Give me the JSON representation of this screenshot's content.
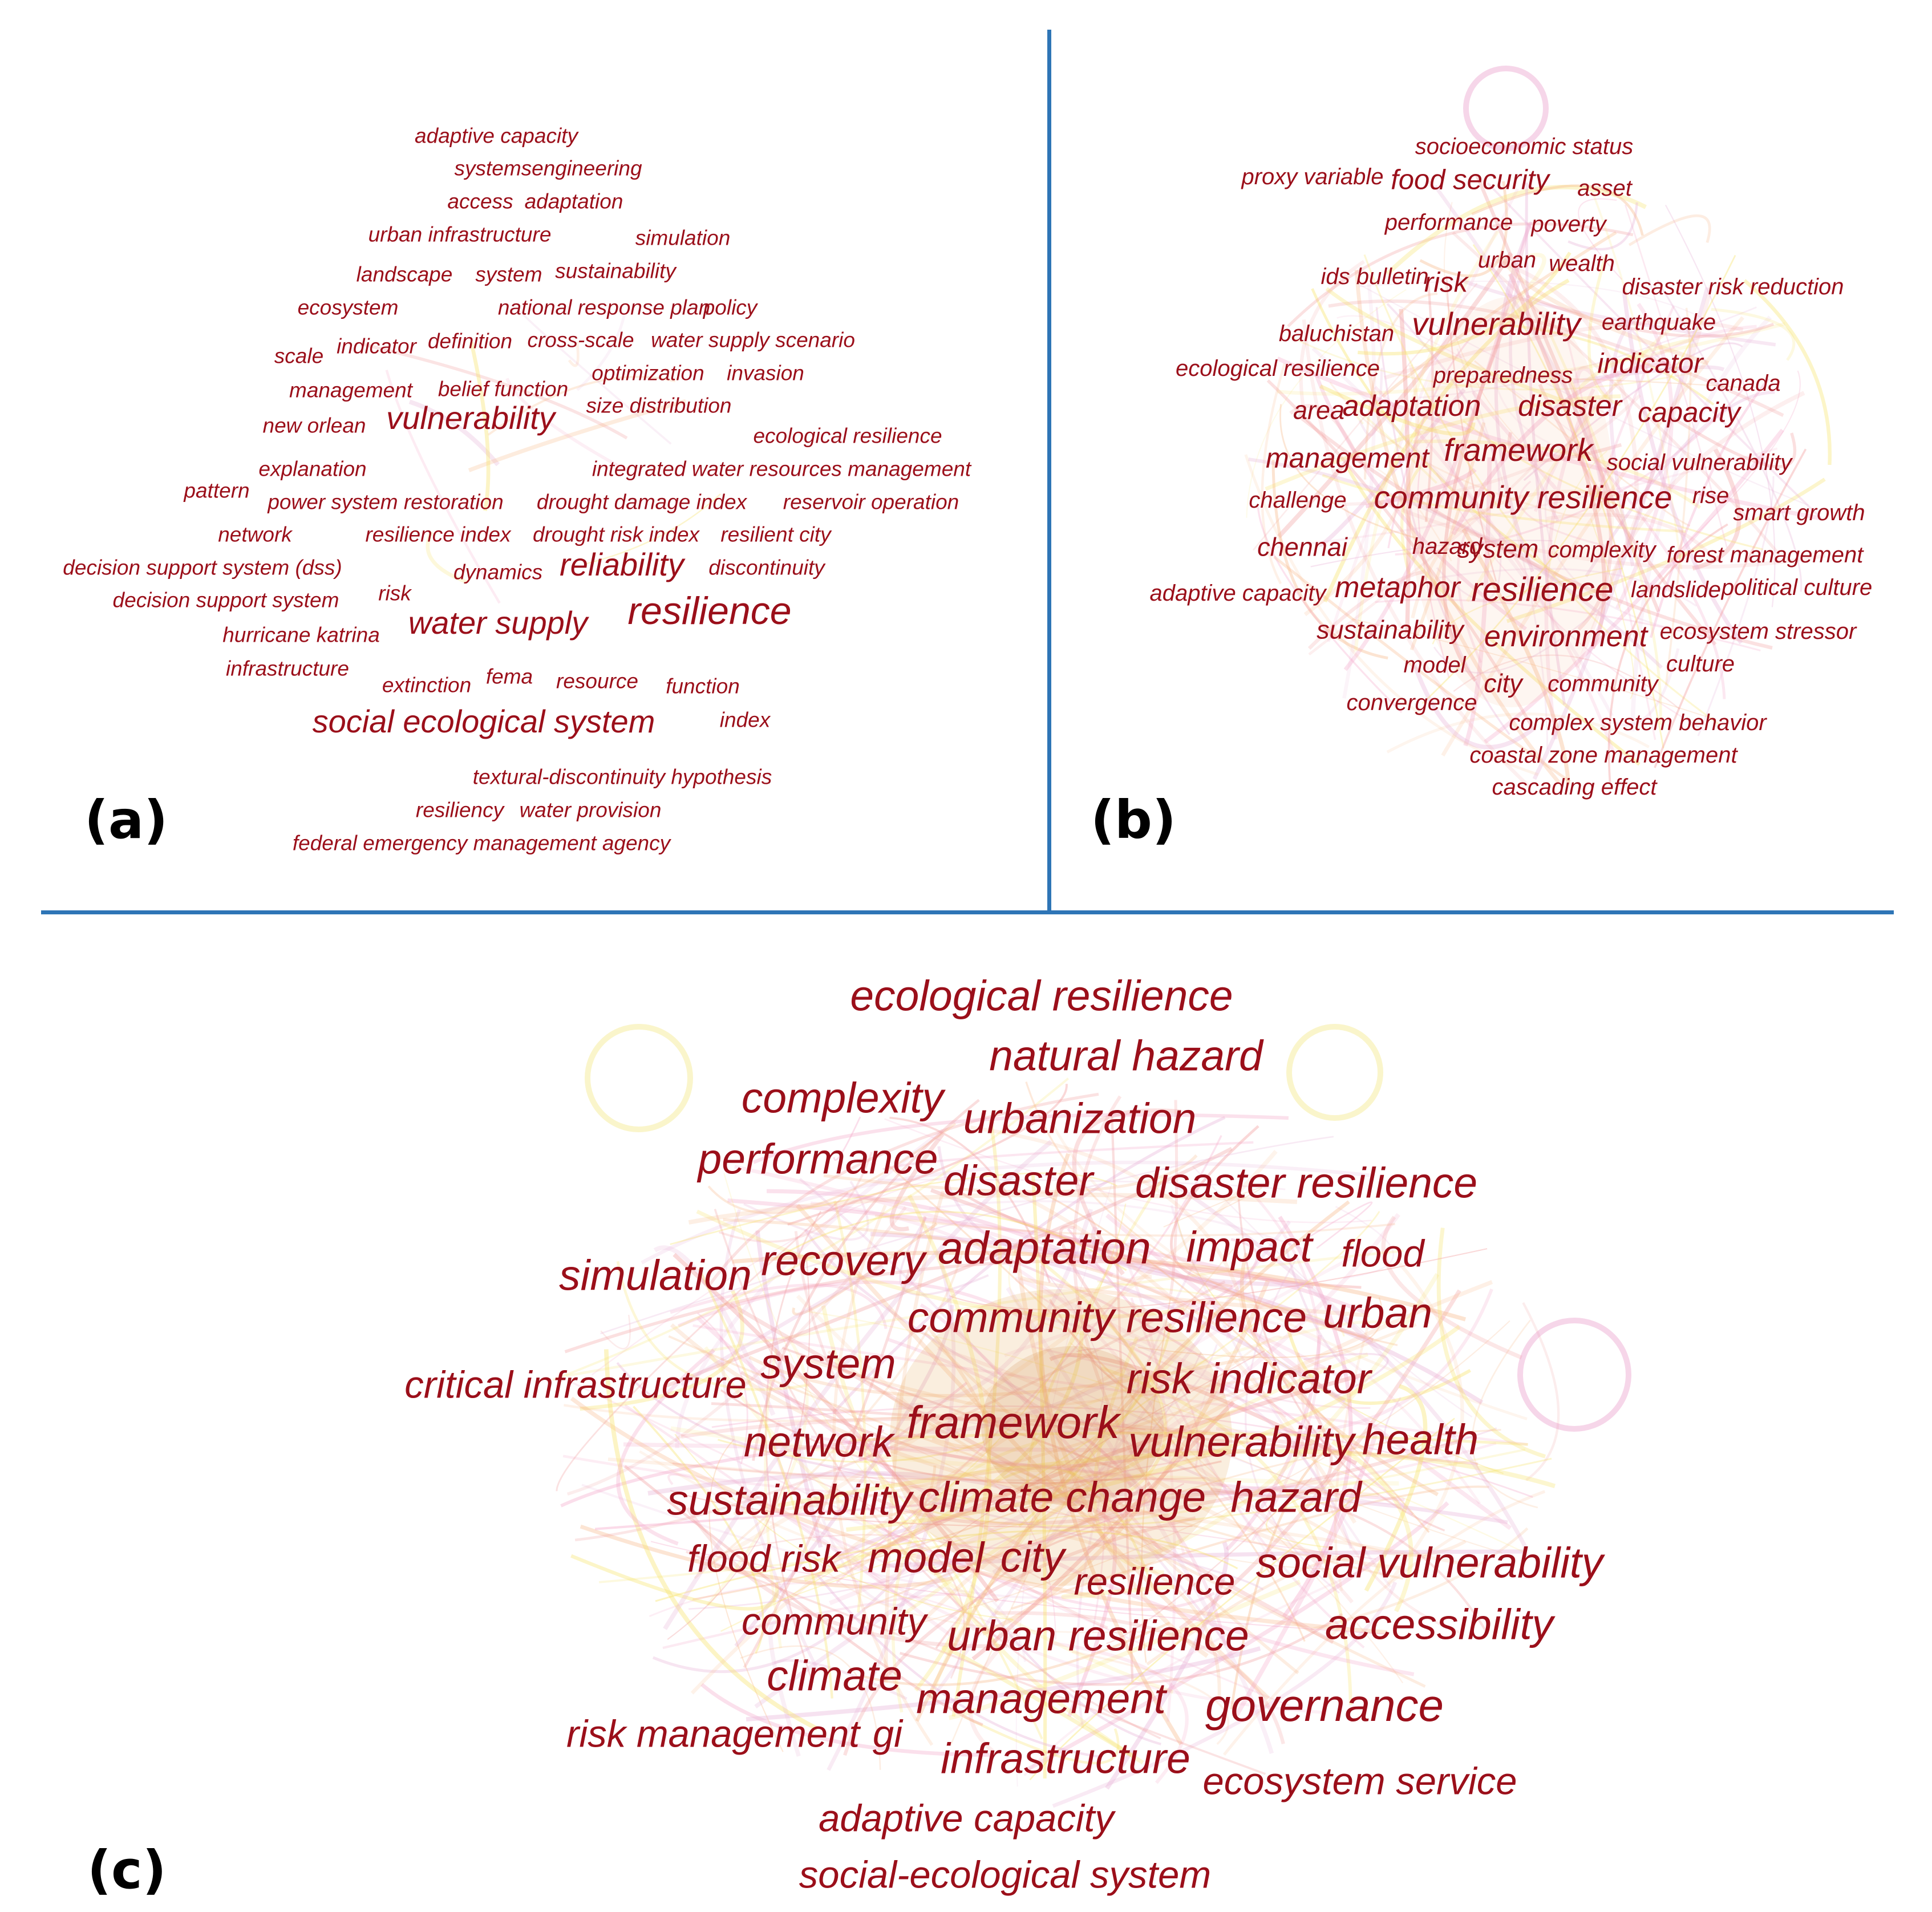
{
  "figure": {
    "divider_color": "#2e75b6",
    "text_color": "#9b0f1a",
    "panels": [
      {
        "id": "a",
        "label": "(a)",
        "terms": [
          "adaptive capacity",
          "systemsengineering",
          "access",
          "adaptation",
          "urban infrastructure",
          "simulation",
          "landscape",
          "system",
          "sustainability",
          "ecosystem",
          "national response plan",
          "policy",
          "scale",
          "indicator",
          "definition",
          "cross-scale",
          "water supply scenario",
          "management",
          "belief function",
          "optimization",
          "invasion",
          "size distribution",
          "new orlean",
          "vulnerability",
          "ecological resilience",
          "explanation",
          "integrated water resources management",
          "pattern",
          "power system restoration",
          "drought damage index",
          "reservoir operation",
          "network",
          "resilience index",
          "drought risk index",
          "resilient city",
          "decision support system (dss)",
          "dynamics",
          "reliability",
          "discontinuity",
          "decision support system",
          "risk",
          "hurricane katrina",
          "water supply",
          "resilience",
          "infrastructure",
          "extinction",
          "fema",
          "resource",
          "function",
          "social ecological system",
          "index",
          "textural-discontinuity hypothesis",
          "resiliency",
          "water provision",
          "federal emergency management agency"
        ]
      },
      {
        "id": "b",
        "label": "(b)",
        "terms": [
          "socioeconomic status",
          "proxy variable",
          "food security",
          "asset",
          "performance",
          "poverty",
          "ids bulletin",
          "risk",
          "urban",
          "wealth",
          "disaster risk reduction",
          "baluchistan",
          "vulnerability",
          "earthquake",
          "ecological resilience",
          "preparedness",
          "indicator",
          "canada",
          "area",
          "adaptation",
          "disaster",
          "capacity",
          "management",
          "framework",
          "social vulnerability",
          "challenge",
          "community resilience",
          "rise",
          "smart growth",
          "chennai",
          "hazard",
          "system",
          "complexity",
          "forest management",
          "adaptive capacity",
          "metaphor",
          "resilience",
          "landslide",
          "political culture",
          "sustainability",
          "environment",
          "ecosystem stressor",
          "model",
          "culture",
          "city",
          "community",
          "convergence",
          "complex system behavior",
          "coastal zone management",
          "cascading effect"
        ]
      },
      {
        "id": "c",
        "label": "(c)",
        "terms": [
          "ecological resilience",
          "natural hazard",
          "complexity",
          "urbanization",
          "performance",
          "disaster",
          "disaster resilience",
          "adaptation",
          "impact",
          "flood",
          "simulation",
          "recovery",
          "community resilience",
          "urban",
          "critical infrastructure",
          "system",
          "risk",
          "indicator",
          "network",
          "framework",
          "vulnerability",
          "health",
          "sustainability",
          "climate change",
          "hazard",
          "flood risk",
          "model",
          "city",
          "resilience",
          "social vulnerability",
          "community",
          "urban resilience",
          "accessibility",
          "climate",
          "management",
          "governance",
          "risk management",
          "gi",
          "infrastructure",
          "ecosystem service",
          "adaptive capacity",
          "social-ecological system"
        ]
      }
    ]
  }
}
